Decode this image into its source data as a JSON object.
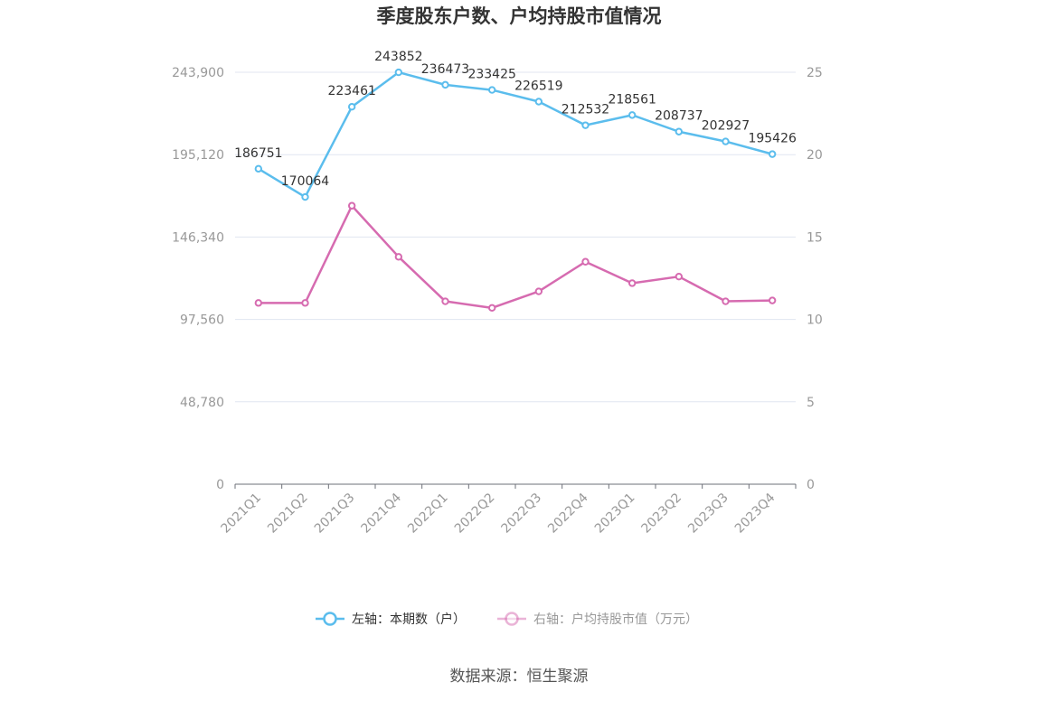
{
  "chart_data": {
    "type": "line",
    "title": "季度股东户数、户均持股市值情况",
    "categories": [
      "2021Q1",
      "2021Q2",
      "2021Q3",
      "2021Q4",
      "2022Q1",
      "2022Q2",
      "2022Q3",
      "2022Q4",
      "2023Q1",
      "2023Q2",
      "2023Q3",
      "2023Q4"
    ],
    "series": [
      {
        "name": "左轴：本期数（户）",
        "axis": "left",
        "color": "#5BBDED",
        "values": [
          186751,
          170064,
          223461,
          243852,
          236473,
          233425,
          226519,
          212532,
          218561,
          208737,
          202927,
          195426
        ],
        "data_labels": [
          "186751",
          "170064",
          "223461",
          "243852",
          "236473",
          "233425",
          "226519",
          "212532",
          "218561",
          "208737",
          "202927",
          "195426"
        ]
      },
      {
        "name": "右轴：户均持股市值（万元）",
        "axis": "right",
        "color": "#D66BB0",
        "values": [
          11.0,
          11.0,
          16.9,
          13.8,
          11.1,
          10.7,
          11.7,
          13.5,
          12.2,
          12.6,
          11.1,
          11.15
        ]
      }
    ],
    "left_axis": {
      "ylim": [
        0,
        243900
      ],
      "ticks": [
        0,
        48780,
        97560,
        146340,
        195120,
        243900
      ],
      "tick_labels": [
        "0",
        "48,780",
        "97,560",
        "146,340",
        "195,120",
        "243,900"
      ]
    },
    "right_axis": {
      "ylim": [
        0,
        25
      ],
      "ticks": [
        0,
        5,
        10,
        15,
        20,
        25
      ],
      "tick_labels": [
        "0",
        "5",
        "10",
        "15",
        "20",
        "25"
      ]
    },
    "grid": true,
    "legend_position": "bottom-center",
    "source": "数据来源：恒生聚源"
  },
  "colors": {
    "grid": "#E0E6F1",
    "axis": "#6E7079",
    "tick_text": "#999999"
  }
}
